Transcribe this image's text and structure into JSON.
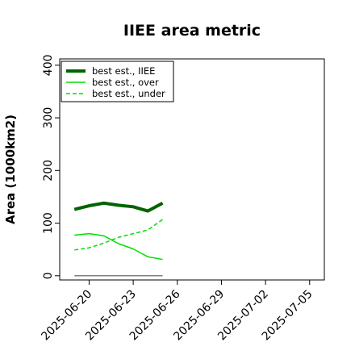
{
  "chart_data": {
    "type": "line",
    "title": "IIEE area metric",
    "xlabel": "",
    "ylabel": "Area (1000km2)",
    "x": [
      "2025-06-19",
      "2025-06-20",
      "2025-06-21",
      "2025-06-22",
      "2025-06-23",
      "2025-06-24",
      "2025-06-25"
    ],
    "xlim": [
      "2025-06-18",
      "2025-07-06"
    ],
    "ylim": [
      -8,
      412
    ],
    "x_tick_labels": [
      "2025-06-20",
      "2025-06-23",
      "2025-06-26",
      "2025-06-29",
      "2025-07-02",
      "2025-07-05"
    ],
    "y_tick_labels": [
      "0",
      "100",
      "200",
      "300",
      "400"
    ],
    "y_tick_values": [
      0,
      100,
      200,
      300,
      400
    ],
    "grid": false,
    "legend_position": "top-left",
    "series": [
      {
        "name": "best est., IIEE",
        "color": "#006400",
        "style": "solid-thick",
        "values": [
          126,
          133,
          138,
          134,
          131,
          123,
          138
        ]
      },
      {
        "name": "best est., over",
        "color": "#00e000",
        "style": "solid",
        "values": [
          77,
          80,
          76,
          61,
          51,
          36,
          31
        ]
      },
      {
        "name": "best est., under",
        "color": "#00e000",
        "style": "dashed",
        "values": [
          49,
          53,
          62,
          73,
          80,
          87,
          107
        ]
      }
    ],
    "baseline": {
      "color": "#808080",
      "values": [
        0,
        0,
        0,
        0,
        0,
        0,
        0
      ]
    }
  }
}
